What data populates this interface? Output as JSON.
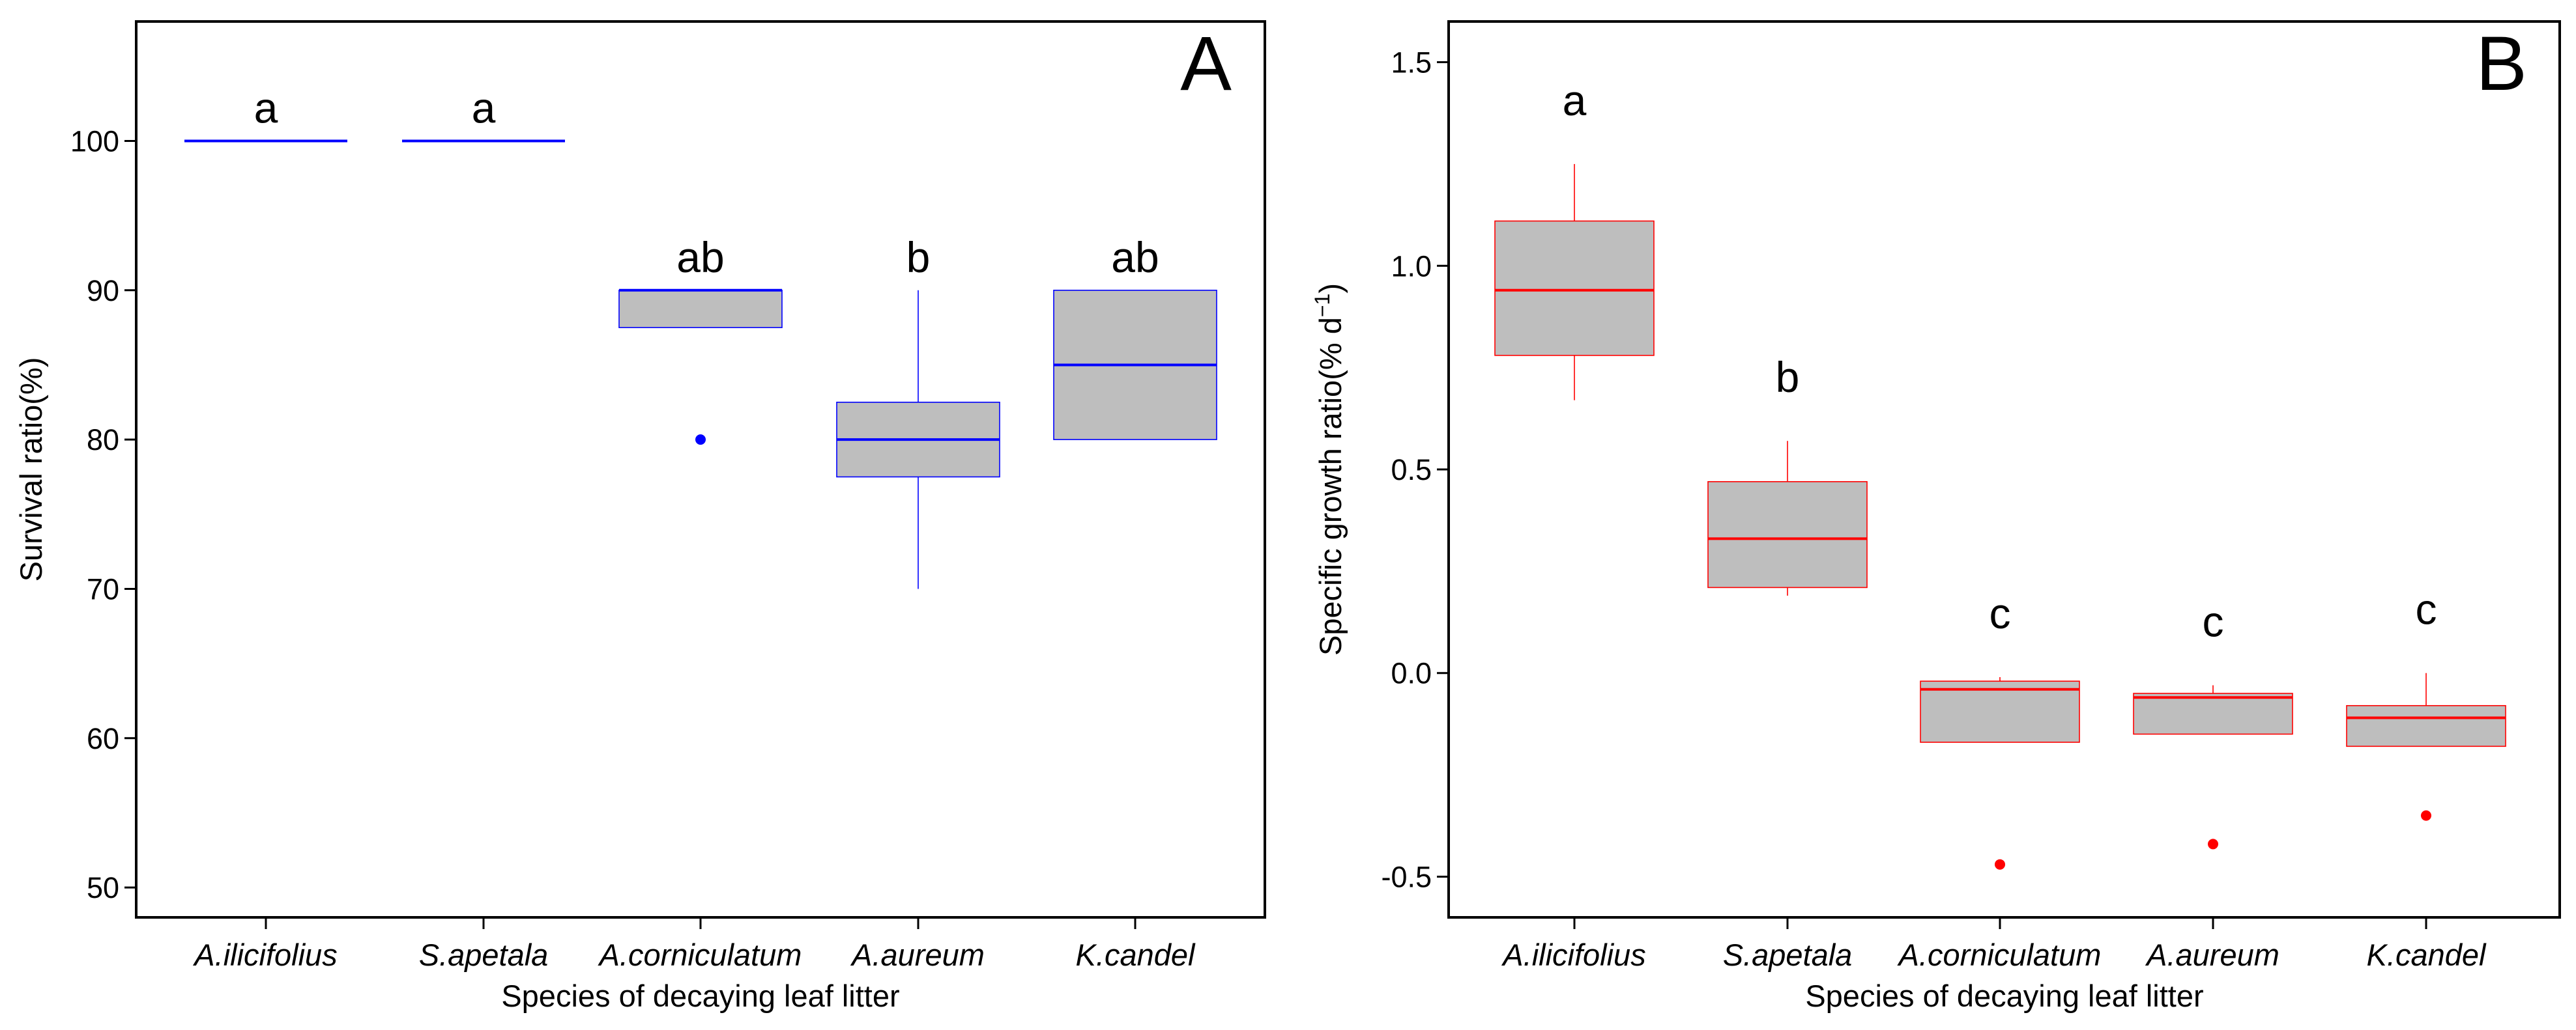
{
  "chart_data": [
    {
      "type": "box",
      "panel_label": "A",
      "xlabel": "Species of decaying leaf litter",
      "ylabel": "Survival ratio(%)",
      "ylim": [
        48,
        108
      ],
      "yticks": [
        50,
        60,
        70,
        80,
        90,
        100
      ],
      "color": "#0000ff",
      "fill": "#bebebe",
      "categories": [
        "A.ilicifolius",
        "S.apetala",
        "A.corniculatum",
        "A.aureum",
        "K.candel"
      ],
      "boxes": [
        {
          "category": "A.ilicifolius",
          "q1": 100,
          "median": 100,
          "q3": 100,
          "whisker_low": 100,
          "whisker_high": 100,
          "outliers": [],
          "letter": "a"
        },
        {
          "category": "S.apetala",
          "q1": 100,
          "median": 100,
          "q3": 100,
          "whisker_low": 100,
          "whisker_high": 100,
          "outliers": [],
          "letter": "a"
        },
        {
          "category": "A.corniculatum",
          "q1": 87.5,
          "median": 90,
          "q3": 90,
          "whisker_low": 87.5,
          "whisker_high": 90,
          "outliers": [
            80
          ],
          "letter": "ab"
        },
        {
          "category": "A.aureum",
          "q1": 77.5,
          "median": 80,
          "q3": 82.5,
          "whisker_low": 70,
          "whisker_high": 90,
          "outliers": [],
          "letter": "b"
        },
        {
          "category": "K.candel",
          "q1": 80,
          "median": 85,
          "q3": 90,
          "whisker_low": 80,
          "whisker_high": 90,
          "outliers": [],
          "letter": "ab"
        }
      ]
    },
    {
      "type": "box",
      "panel_label": "B",
      "xlabel": "Species of decaying leaf litter",
      "ylabel": "Specific growth ratio(% d",
      "ylabel_sup": "−1",
      "ylabel_end": ")",
      "ylim": [
        -0.6,
        1.6
      ],
      "yticks": [
        -0.5,
        0.0,
        0.5,
        1.0,
        1.5
      ],
      "ytick_labels": [
        "-0.5",
        "0.0",
        "0.5",
        "1.0",
        "1.5"
      ],
      "color": "#ff0000",
      "fill": "#bebebe",
      "categories": [
        "A.ilicifolius",
        "S.apetala",
        "A.corniculatum",
        "A.aureum",
        "K.candel"
      ],
      "boxes": [
        {
          "category": "A.ilicifolius",
          "q1": 0.78,
          "median": 0.94,
          "q3": 1.11,
          "whisker_low": 0.67,
          "whisker_high": 1.25,
          "outliers": [],
          "letter": "a"
        },
        {
          "category": "S.apetala",
          "q1": 0.21,
          "median": 0.33,
          "q3": 0.47,
          "whisker_low": 0.19,
          "whisker_high": 0.57,
          "outliers": [],
          "letter": "b"
        },
        {
          "category": "A.corniculatum",
          "q1": -0.17,
          "median": -0.04,
          "q3": -0.02,
          "whisker_low": -0.17,
          "whisker_high": -0.01,
          "outliers": [
            -0.47
          ],
          "letter": "c"
        },
        {
          "category": "A.aureum",
          "q1": -0.15,
          "median": -0.06,
          "q3": -0.05,
          "whisker_low": -0.15,
          "whisker_high": -0.03,
          "outliers": [
            -0.42
          ],
          "letter": "c"
        },
        {
          "category": "K.candel",
          "q1": -0.18,
          "median": -0.11,
          "q3": -0.08,
          "whisker_low": -0.18,
          "whisker_high": 0.0,
          "outliers": [
            -0.35
          ],
          "letter": "c"
        }
      ]
    }
  ]
}
